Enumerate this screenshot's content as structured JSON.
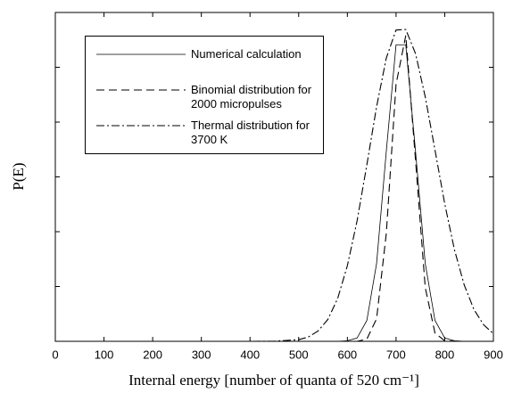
{
  "chart_data": {
    "type": "line",
    "xlabel": "Internal energy [number of quanta of 520 cm⁻¹]",
    "ylabel": "P(E)",
    "x": [
      0,
      100,
      200,
      300,
      400,
      450,
      500,
      520,
      540,
      560,
      580,
      600,
      620,
      640,
      660,
      680,
      700,
      720,
      740,
      760,
      780,
      800,
      820,
      840,
      860,
      880,
      900
    ],
    "series": [
      {
        "name": "Numerical calculation",
        "color": "#000000",
        "linestyle": "solid",
        "values": [
          0,
          0,
          0,
          0,
          0,
          0,
          0,
          0,
          0,
          0,
          0,
          0.01,
          0.06,
          0.38,
          1.42,
          3.47,
          5.41,
          5.41,
          3.47,
          1.42,
          0.38,
          0.06,
          0.01,
          0,
          0,
          0,
          0
        ]
      },
      {
        "name": "Binomial distribution for 2000 micropulses",
        "color": "#000000",
        "linestyle": "dashed",
        "values": [
          0,
          0,
          0,
          0,
          0,
          0,
          0,
          0,
          0,
          0,
          0,
          0,
          0,
          0.04,
          0.41,
          1.97,
          4.69,
          5.58,
          3.31,
          0.98,
          0.15,
          0.01,
          0,
          0,
          0,
          0,
          0
        ]
      },
      {
        "name": "Thermal distribution for 3700 K",
        "color": "#000000",
        "linestyle": "dashdot",
        "values": [
          0,
          0,
          0,
          0,
          0,
          0.002,
          0.03,
          0.08,
          0.19,
          0.4,
          0.78,
          1.38,
          2.2,
          3.22,
          4.28,
          5.17,
          5.68,
          5.69,
          5.25,
          4.46,
          3.49,
          2.51,
          1.67,
          1.03,
          0.58,
          0.3,
          0.14
        ]
      }
    ],
    "xlim": [
      0,
      900
    ],
    "xticks": [
      0,
      100,
      200,
      300,
      400,
      500,
      600,
      700,
      800,
      900
    ],
    "ylim": [
      0,
      6
    ],
    "yticks": [
      0,
      1,
      2,
      3,
      4,
      5,
      6
    ],
    "legend": "upper left"
  }
}
